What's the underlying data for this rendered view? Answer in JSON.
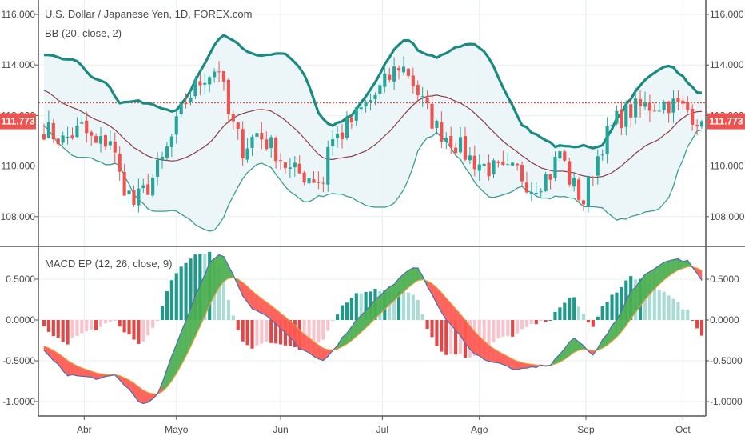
{
  "colors": {
    "up": "#26a69a",
    "down": "#ef5350",
    "bb_upper": "#1b8a80",
    "bb_lower": "#3a9e8e",
    "bb_basis": "#8d3b45",
    "bb_fill": "#eaf5f7",
    "last_price_line": "#e53935",
    "hist_up_strong": "#1e9a8a",
    "hist_up_weak": "#a8dcd4",
    "hist_down_strong": "#e04848",
    "hist_down_weak": "#f8c4cc",
    "macd_fill_up": "#4caf50",
    "macd_fill_down": "#ff5a52",
    "macd_line": "#4a6fb5",
    "signal_line": "#e6a23c",
    "grid": "#e8eef2",
    "axis": "#555555"
  },
  "chart_data": [
    {
      "type": "candlestick",
      "title": "U.S. Dollar / Japanese Yen, 1D, FOREX.com",
      "indicator_label": "BB (20, close, 2)",
      "ylim": [
        107.0,
        116.6
      ],
      "yticks": [
        108,
        110,
        112,
        114,
        116
      ],
      "ytick_labels": [
        "108.000",
        "110.000",
        "112.000",
        "114.000",
        "116.000"
      ],
      "last_price": 111.773,
      "last_price_label": "111.773",
      "reference_line": 112.5,
      "n_bars": 140,
      "close_keypoints": [
        [
          0,
          111.5
        ],
        [
          4,
          111.0
        ],
        [
          8,
          111.5
        ],
        [
          11,
          110.8
        ],
        [
          14,
          111.1
        ],
        [
          16,
          109.6
        ],
        [
          19,
          108.5
        ],
        [
          22,
          109.2
        ],
        [
          25,
          110.2
        ],
        [
          27,
          111.1
        ],
        [
          30,
          112.6
        ],
        [
          34,
          113.6
        ],
        [
          37,
          113.9
        ],
        [
          39,
          112.0
        ],
        [
          42,
          110.7
        ],
        [
          45,
          111.3
        ],
        [
          49,
          110.6
        ],
        [
          52,
          109.8
        ],
        [
          56,
          109.6
        ],
        [
          59,
          109.4
        ],
        [
          60,
          110.9
        ],
        [
          63,
          111.3
        ],
        [
          66,
          112.0
        ],
        [
          70,
          112.8
        ],
        [
          73,
          113.5
        ],
        [
          75,
          114.0
        ],
        [
          77,
          113.7
        ],
        [
          80,
          112.5
        ],
        [
          83,
          111.5
        ],
        [
          87,
          110.9
        ],
        [
          90,
          110.3
        ],
        [
          93,
          110.0
        ],
        [
          97,
          109.7
        ],
        [
          100,
          109.8
        ],
        [
          103,
          109.2
        ],
        [
          107,
          109.7
        ],
        [
          109,
          110.6
        ],
        [
          111,
          109.5
        ],
        [
          114,
          108.6
        ],
        [
          116,
          109.9
        ],
        [
          118,
          110.9
        ],
        [
          121,
          111.8
        ],
        [
          124,
          112.2
        ],
        [
          128,
          112.4
        ],
        [
          132,
          112.5
        ],
        [
          136,
          112.2
        ],
        [
          139,
          111.773
        ]
      ],
      "x_categories": [
        "Abr",
        "Mayo",
        "Jun",
        "Jul",
        "Ago",
        "Sep",
        "Oct"
      ],
      "x_category_bar_index": [
        8.5,
        28,
        50,
        71.5,
        92,
        114.5,
        135
      ]
    },
    {
      "type": "line+histogram",
      "title": "MACD EP (12, 26, close, 9)",
      "ylim": [
        -1.12,
        0.84
      ],
      "yticks": [
        0.5,
        0.0,
        -0.5,
        -1.0
      ],
      "ytick_labels": [
        "0.5000",
        "0.0000",
        "-0.5000",
        "-1.0000"
      ],
      "macd_keypoints": [
        [
          0,
          -0.38
        ],
        [
          2,
          -0.5
        ],
        [
          5,
          -0.67
        ],
        [
          9,
          -0.7
        ],
        [
          12,
          -0.72
        ],
        [
          15,
          -0.68
        ],
        [
          18,
          -0.85
        ],
        [
          20,
          -1.0
        ],
        [
          22,
          -1.02
        ],
        [
          24,
          -0.92
        ],
        [
          28,
          -0.3
        ],
        [
          32,
          0.3
        ],
        [
          35,
          0.7
        ],
        [
          37,
          0.79
        ],
        [
          38,
          0.79
        ],
        [
          40,
          0.55
        ],
        [
          42,
          0.3
        ],
        [
          44,
          0.15
        ],
        [
          47,
          0.05
        ],
        [
          50,
          -0.1
        ],
        [
          54,
          -0.35
        ],
        [
          57,
          -0.45
        ],
        [
          59,
          -0.5
        ],
        [
          62,
          -0.3
        ],
        [
          66,
          0.0
        ],
        [
          70,
          0.25
        ],
        [
          74,
          0.45
        ],
        [
          77,
          0.6
        ],
        [
          79,
          0.65
        ],
        [
          80,
          0.55
        ],
        [
          82,
          0.3
        ],
        [
          85,
          0.0
        ],
        [
          88,
          -0.2
        ],
        [
          91,
          -0.42
        ],
        [
          94,
          -0.5
        ],
        [
          97,
          -0.55
        ],
        [
          100,
          -0.62
        ],
        [
          103,
          -0.58
        ],
        [
          107,
          -0.55
        ],
        [
          110,
          -0.35
        ],
        [
          112,
          -0.22
        ],
        [
          114,
          -0.32
        ],
        [
          116,
          -0.42
        ],
        [
          118,
          -0.25
        ],
        [
          121,
          0.0
        ],
        [
          124,
          0.35
        ],
        [
          127,
          0.55
        ],
        [
          130,
          0.68
        ],
        [
          133,
          0.75
        ],
        [
          136,
          0.72
        ],
        [
          139,
          0.48
        ]
      ],
      "signal_period": 9
    }
  ]
}
